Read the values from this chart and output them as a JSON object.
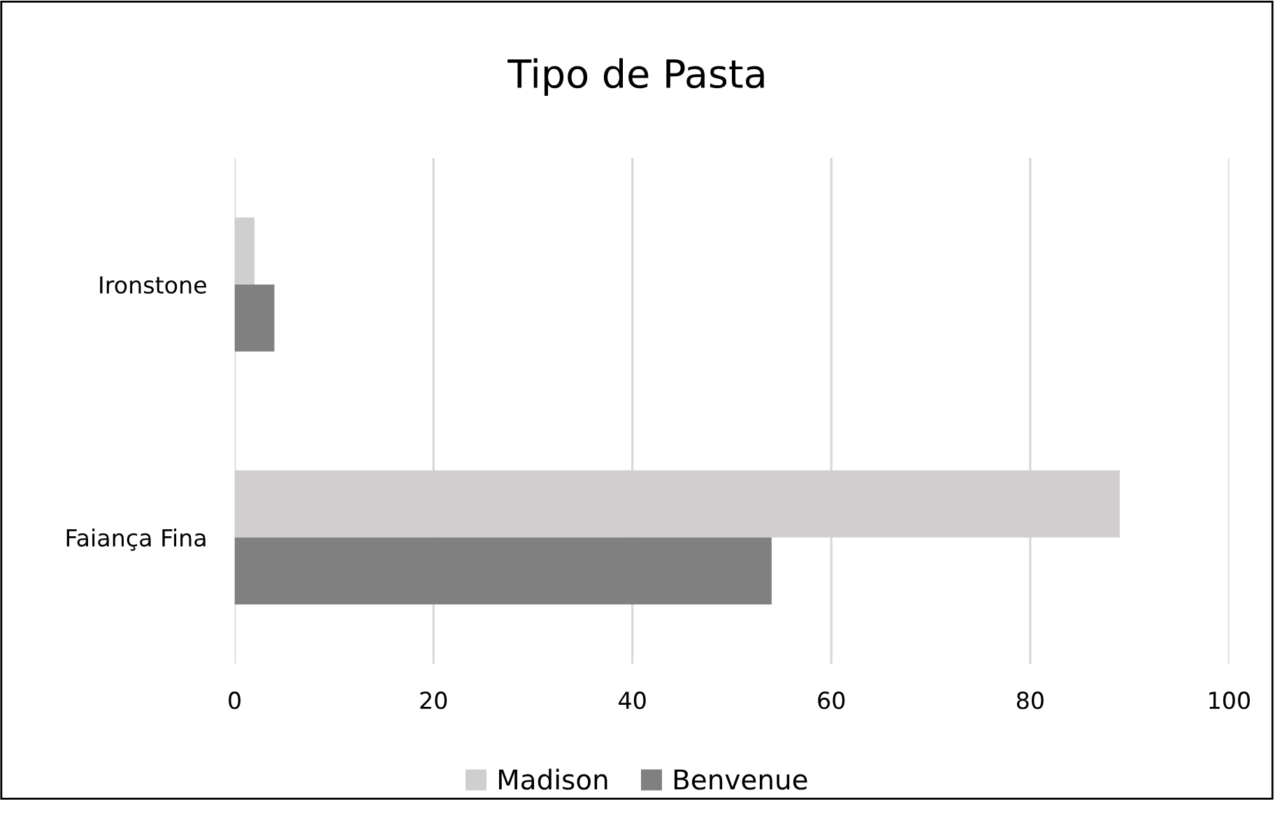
{
  "chart_data": {
    "type": "bar",
    "orientation": "horizontal",
    "title": "Tipo de Pasta",
    "categories": [
      "Ironstone",
      "Faiança Fina"
    ],
    "series": [
      {
        "name": "Madison",
        "color": "#d0cece",
        "values": [
          2,
          89
        ]
      },
      {
        "name": "Benvenue",
        "color": "#808080",
        "values": [
          4,
          54
        ]
      }
    ],
    "xlim": [
      0,
      100
    ],
    "xticks": [
      0,
      20,
      40,
      60,
      80,
      100
    ],
    "grid": "x",
    "legend": "bottom"
  }
}
